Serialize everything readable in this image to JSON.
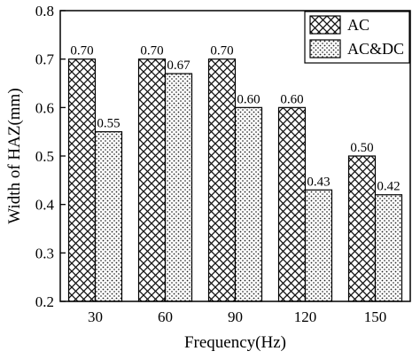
{
  "chart_data": {
    "type": "bar",
    "xlabel": "Frequency(Hz)",
    "ylabel": "Width of HAZ(mm)",
    "categories": [
      "30",
      "60",
      "90",
      "120",
      "150"
    ],
    "ylim": [
      0.2,
      0.8
    ],
    "yticks": [
      "0.2",
      "0.3",
      "0.4",
      "0.5",
      "0.6",
      "0.7",
      "0.8"
    ],
    "legend_position": "top-right",
    "grid": false,
    "series": [
      {
        "name": "AC",
        "values": [
          0.7,
          0.7,
          0.7,
          0.6,
          0.5
        ],
        "value_labels": [
          "0.70",
          "0.70",
          "0.70",
          "0.60",
          "0.50"
        ],
        "pattern": "crosshatch"
      },
      {
        "name": "AC&DC",
        "values": [
          0.55,
          0.67,
          0.6,
          0.43,
          0.42
        ],
        "value_labels": [
          "0.55",
          "0.67",
          "0.60",
          "0.43",
          "0.42"
        ],
        "pattern": "dots"
      }
    ]
  }
}
